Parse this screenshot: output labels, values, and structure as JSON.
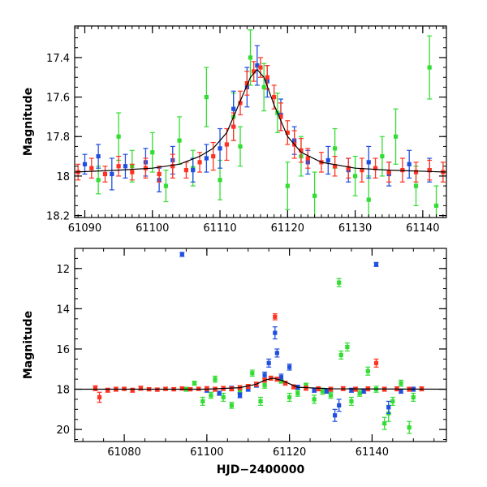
{
  "colors": {
    "blue": "#1f4fe0",
    "green": "#33dd33",
    "red": "#ff3322",
    "model": "#000000"
  },
  "chart_data": [
    {
      "type": "scatter",
      "panel": "top",
      "title": "",
      "xlabel": "",
      "ylabel": "Magnitude",
      "xlim": [
        61088.5,
        61143.5
      ],
      "ylim": [
        18.21,
        17.24
      ],
      "y_inverted": true,
      "x_ticks": [
        61090,
        61100,
        61110,
        61120,
        61130,
        61140
      ],
      "x_tick_labels": [
        "61090",
        "61100",
        "61110",
        "61120",
        "61130",
        "61140"
      ],
      "y_ticks": [
        17.4,
        17.6,
        17.8,
        18.0,
        18.2
      ],
      "y_tick_labels": [
        "17.4",
        "17.6",
        "17.8",
        "18",
        "18.2"
      ],
      "model_curve": {
        "x": [
          61088.5,
          61095,
          61100,
          61104,
          61107,
          61109,
          61111,
          61113,
          61114.5,
          61115.5,
          61116.5,
          61118,
          61120,
          61122,
          61125,
          61130,
          61135,
          61143.5
        ],
        "y": [
          17.98,
          17.97,
          17.96,
          17.94,
          17.9,
          17.86,
          17.78,
          17.62,
          17.5,
          17.46,
          17.5,
          17.64,
          17.8,
          17.88,
          17.93,
          17.96,
          17.97,
          17.98
        ]
      },
      "series": [
        {
          "name": "red",
          "color": "#ff3322",
          "points": [
            [
              61089,
              17.98,
              0.04
            ],
            [
              61091,
              17.96,
              0.05
            ],
            [
              61093,
              17.99,
              0.04
            ],
            [
              61095,
              17.95,
              0.05
            ],
            [
              61097,
              17.98,
              0.04
            ],
            [
              61099,
              17.96,
              0.05
            ],
            [
              61101,
              17.99,
              0.04
            ],
            [
              61103,
              17.95,
              0.06
            ],
            [
              61105,
              17.97,
              0.04
            ],
            [
              61107,
              17.93,
              0.05
            ],
            [
              61109,
              17.9,
              0.07
            ],
            [
              61111,
              17.84,
              0.08
            ],
            [
              61112,
              17.75,
              0.07
            ],
            [
              61113,
              17.63,
              0.06
            ],
            [
              61114,
              17.53,
              0.06
            ],
            [
              61115,
              17.47,
              0.05
            ],
            [
              61116,
              17.45,
              0.05
            ],
            [
              61117,
              17.5,
              0.06
            ],
            [
              61118,
              17.6,
              0.06
            ],
            [
              61119,
              17.7,
              0.07
            ],
            [
              61120,
              17.78,
              0.06
            ],
            [
              61121,
              17.84,
              0.07
            ],
            [
              61122,
              17.87,
              0.06
            ],
            [
              61123,
              17.91,
              0.05
            ],
            [
              61125,
              17.93,
              0.05
            ],
            [
              61127,
              17.95,
              0.05
            ],
            [
              61129,
              17.96,
              0.05
            ],
            [
              61131,
              17.97,
              0.06
            ],
            [
              61133,
              17.96,
              0.05
            ],
            [
              61135,
              17.98,
              0.05
            ],
            [
              61137,
              17.97,
              0.06
            ],
            [
              61139,
              17.98,
              0.05
            ],
            [
              61141,
              17.97,
              0.05
            ],
            [
              61143,
              17.98,
              0.05
            ]
          ]
        },
        {
          "name": "blue",
          "color": "#1f4fe0",
          "points": [
            [
              61090,
              17.94,
              0.05
            ],
            [
              61092,
              17.9,
              0.06
            ],
            [
              61094,
              17.99,
              0.08
            ],
            [
              61096,
              17.95,
              0.06
            ],
            [
              61099,
              17.93,
              0.07
            ],
            [
              61101,
              18.02,
              0.06
            ],
            [
              61103,
              17.92,
              0.07
            ],
            [
              61106,
              17.97,
              0.06
            ],
            [
              61108,
              17.91,
              0.07
            ],
            [
              61110,
              17.86,
              0.1
            ],
            [
              61112,
              17.66,
              0.09
            ],
            [
              61114,
              17.55,
              0.1
            ],
            [
              61115.5,
              17.44,
              0.1
            ],
            [
              61117,
              17.52,
              0.08
            ],
            [
              61119,
              17.69,
              0.08
            ],
            [
              61121,
              17.82,
              0.07
            ],
            [
              61123,
              17.93,
              0.06
            ],
            [
              61126,
              17.92,
              0.07
            ],
            [
              61129,
              17.97,
              0.06
            ],
            [
              61132,
              17.93,
              0.08
            ],
            [
              61135,
              17.99,
              0.06
            ],
            [
              61138,
              17.94,
              0.07
            ],
            [
              61141,
              17.97,
              0.06
            ]
          ]
        },
        {
          "name": "green",
          "color": "#33dd33",
          "points": [
            [
              61092,
              18.02,
              0.07
            ],
            [
              61095,
              17.8,
              0.12
            ],
            [
              61097,
              17.95,
              0.08
            ],
            [
              61100,
              17.88,
              0.1
            ],
            [
              61102,
              18.05,
              0.08
            ],
            [
              61104,
              17.82,
              0.12
            ],
            [
              61106,
              17.96,
              0.09
            ],
            [
              61108,
              17.6,
              0.15
            ],
            [
              61110,
              18.02,
              0.1
            ],
            [
              61112,
              17.7,
              0.12
            ],
            [
              61113,
              17.85,
              0.1
            ],
            [
              61114.5,
              17.4,
              0.14
            ],
            [
              61116.5,
              17.55,
              0.12
            ],
            [
              61118.5,
              17.68,
              0.1
            ],
            [
              61120,
              18.05,
              0.12
            ],
            [
              61122,
              17.9,
              0.1
            ],
            [
              61124,
              18.1,
              0.12
            ],
            [
              61127,
              17.86,
              0.1
            ],
            [
              61130,
              18.0,
              0.1
            ],
            [
              61132,
              18.12,
              0.12
            ],
            [
              61134,
              17.9,
              0.1
            ],
            [
              61136,
              17.8,
              0.14
            ],
            [
              61139,
              18.05,
              0.1
            ],
            [
              61141,
              17.45,
              0.16
            ],
            [
              61142,
              18.15,
              0.1
            ]
          ]
        }
      ]
    },
    {
      "type": "scatter",
      "panel": "bottom",
      "title": "",
      "xlabel": "HJD−2400000",
      "ylabel": "Magnitude",
      "xlim": [
        61068,
        61158
      ],
      "ylim": [
        20.6,
        11.0
      ],
      "y_inverted": true,
      "x_ticks": [
        61080,
        61100,
        61120,
        61140
      ],
      "x_tick_labels": [
        "61080",
        "61100",
        "61120",
        "61140"
      ],
      "y_ticks": [
        12,
        14,
        16,
        18,
        20
      ],
      "y_tick_labels": [
        "12",
        "14",
        "16",
        "18",
        "20"
      ],
      "model_curve": {
        "x": [
          61068,
          61100,
          61108,
          61112,
          61114,
          61116,
          61118,
          61122,
          61130,
          61158
        ],
        "y": [
          18.0,
          18.0,
          17.92,
          17.75,
          17.55,
          17.45,
          17.55,
          17.9,
          17.98,
          18.0
        ]
      },
      "series": [
        {
          "name": "red",
          "color": "#ff3322",
          "points": [
            [
              61073,
              17.95,
              0.12
            ],
            [
              61074,
              18.4,
              0.25
            ],
            [
              61076,
              18.05,
              0.1
            ],
            [
              61078,
              18.0,
              0.1
            ],
            [
              61080,
              17.98,
              0.08
            ],
            [
              61082,
              18.05,
              0.1
            ],
            [
              61084,
              17.95,
              0.1
            ],
            [
              61086,
              18.0,
              0.08
            ],
            [
              61088,
              18.02,
              0.08
            ],
            [
              61090,
              17.98,
              0.08
            ],
            [
              61092,
              18.0,
              0.08
            ],
            [
              61094,
              17.96,
              0.08
            ],
            [
              61096,
              18.0,
              0.08
            ],
            [
              61098,
              17.98,
              0.08
            ],
            [
              61100,
              17.97,
              0.1
            ],
            [
              61102,
              18.0,
              0.1
            ],
            [
              61104,
              17.96,
              0.1
            ],
            [
              61106,
              17.98,
              0.1
            ],
            [
              61108,
              17.92,
              0.1
            ],
            [
              61110,
              17.86,
              0.1
            ],
            [
              61112,
              17.75,
              0.1
            ],
            [
              61114,
              17.55,
              0.1
            ],
            [
              61115.5,
              17.45,
              0.1
            ],
            [
              61116.5,
              14.4,
              0.15
            ],
            [
              61117,
              17.5,
              0.1
            ],
            [
              61119,
              17.7,
              0.1
            ],
            [
              61121,
              17.88,
              0.1
            ],
            [
              61124,
              17.95,
              0.1
            ],
            [
              61127,
              17.98,
              0.1
            ],
            [
              61130,
              18.0,
              0.1
            ],
            [
              61133,
              17.97,
              0.1
            ],
            [
              61136,
              18.0,
              0.1
            ],
            [
              61139,
              17.98,
              0.1
            ],
            [
              61141,
              16.7,
              0.2
            ],
            [
              61143,
              18.0,
              0.1
            ],
            [
              61146,
              17.98,
              0.1
            ],
            [
              61149,
              18.0,
              0.1
            ],
            [
              61152,
              17.98,
              0.1
            ]
          ]
        },
        {
          "name": "blue",
          "color": "#1f4fe0",
          "points": [
            [
              61094,
              11.3,
              0.1
            ],
            [
              61100,
              18.05,
              0.1
            ],
            [
              61103,
              18.2,
              0.1
            ],
            [
              61106,
              17.95,
              0.1
            ],
            [
              61108,
              18.3,
              0.12
            ],
            [
              61110,
              18.0,
              0.1
            ],
            [
              61112,
              17.8,
              0.1
            ],
            [
              61114,
              17.3,
              0.15
            ],
            [
              61115,
              16.7,
              0.2
            ],
            [
              61116.5,
              15.2,
              0.3
            ],
            [
              61117,
              16.2,
              0.2
            ],
            [
              61118,
              17.4,
              0.15
            ],
            [
              61120,
              16.9,
              0.15
            ],
            [
              61122,
              17.9,
              0.1
            ],
            [
              61126,
              18.05,
              0.1
            ],
            [
              61129,
              18.1,
              0.1
            ],
            [
              61131,
              19.3,
              0.3
            ],
            [
              61132,
              18.8,
              0.3
            ],
            [
              61135,
              18.05,
              0.1
            ],
            [
              61138,
              18.1,
              0.1
            ],
            [
              61141,
              11.8,
              0.1
            ],
            [
              61144,
              18.9,
              0.3
            ],
            [
              61147,
              18.1,
              0.1
            ],
            [
              61150,
              18.0,
              0.1
            ]
          ]
        },
        {
          "name": "green",
          "color": "#33dd33",
          "points": [
            [
              61095,
              18.0,
              0.1
            ],
            [
              61097,
              17.7,
              0.1
            ],
            [
              61099,
              18.6,
              0.2
            ],
            [
              61101,
              18.3,
              0.15
            ],
            [
              61102,
              17.5,
              0.15
            ],
            [
              61104,
              18.4,
              0.2
            ],
            [
              61106,
              18.8,
              0.15
            ],
            [
              61108,
              18.1,
              0.15
            ],
            [
              61110,
              17.9,
              0.1
            ],
            [
              61111,
              17.2,
              0.15
            ],
            [
              61113,
              18.6,
              0.2
            ],
            [
              61114,
              17.8,
              0.15
            ],
            [
              61118,
              17.6,
              0.1
            ],
            [
              61120,
              18.4,
              0.2
            ],
            [
              61122,
              18.2,
              0.15
            ],
            [
              61124,
              17.8,
              0.1
            ],
            [
              61126,
              18.5,
              0.2
            ],
            [
              61128,
              18.1,
              0.15
            ],
            [
              61130,
              18.3,
              0.15
            ],
            [
              61132,
              12.7,
              0.2
            ],
            [
              61132.5,
              16.3,
              0.2
            ],
            [
              61134,
              15.9,
              0.2
            ],
            [
              61135,
              18.6,
              0.2
            ],
            [
              61137,
              18.2,
              0.15
            ],
            [
              61139,
              17.1,
              0.2
            ],
            [
              61141,
              18.0,
              0.15
            ],
            [
              61143,
              19.7,
              0.3
            ],
            [
              61144,
              19.2,
              0.4
            ],
            [
              61145,
              18.6,
              0.2
            ],
            [
              61147,
              17.7,
              0.15
            ],
            [
              61149,
              19.9,
              0.3
            ],
            [
              61150,
              18.4,
              0.2
            ]
          ]
        }
      ]
    }
  ]
}
